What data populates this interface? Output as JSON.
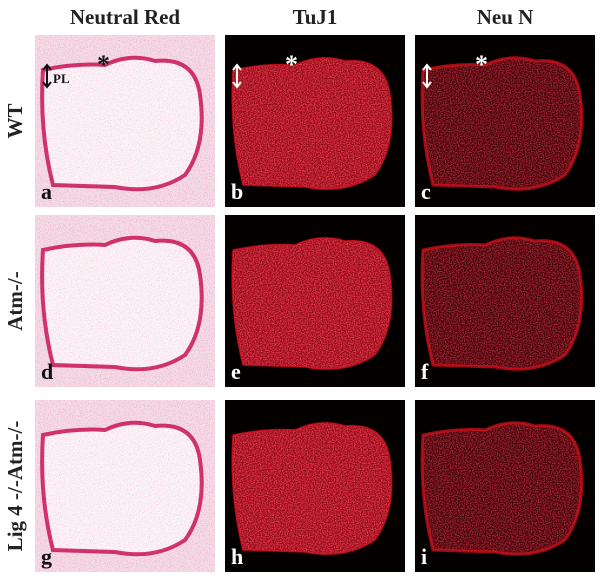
{
  "columns": [
    "Neutral Red",
    "TuJ1",
    "Neu N"
  ],
  "rows": [
    "WT",
    "Atm-/-",
    "Lig 4 -/-Atm-/-"
  ],
  "panels": [
    {
      "letter": "a",
      "annotations": [
        "*",
        "PL"
      ]
    },
    {
      "letter": "b",
      "annotations": [
        "*"
      ]
    },
    {
      "letter": "c",
      "annotations": [
        "*"
      ]
    },
    {
      "letter": "d"
    },
    {
      "letter": "e"
    },
    {
      "letter": "f"
    },
    {
      "letter": "g"
    },
    {
      "letter": "h"
    },
    {
      "letter": "i"
    }
  ]
}
